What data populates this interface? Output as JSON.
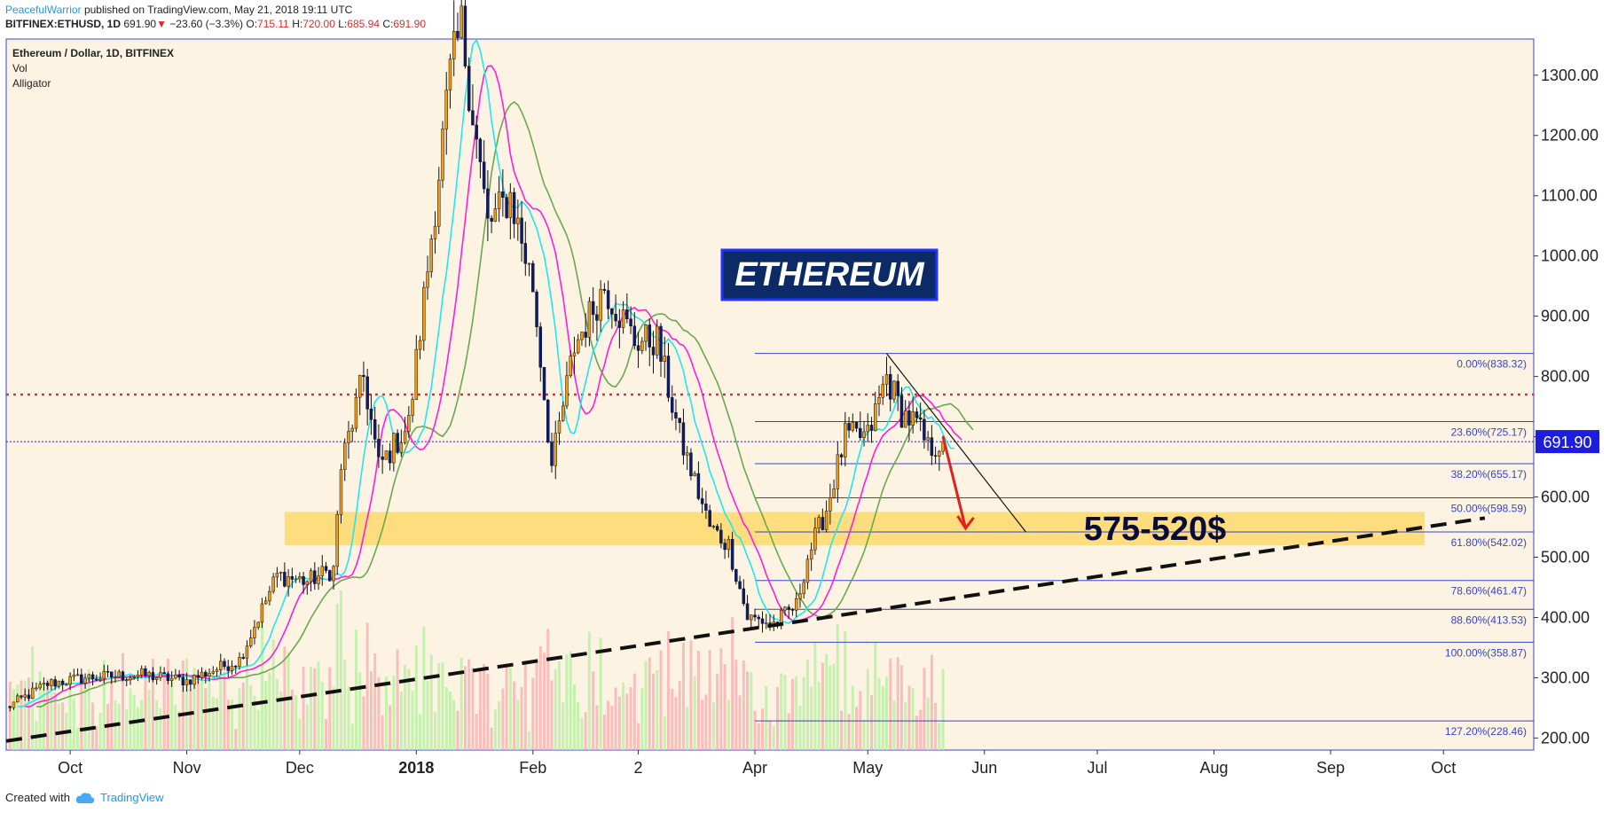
{
  "header": {
    "author": "PeacefulWarrior",
    "published": "published on TradingView.com, May 21, 2018 19:11 UTC",
    "symbol": "BITFINEX:ETHUSD, 1D",
    "last": "691.90",
    "change_arrow": "▼",
    "change": "−23.60 (−3.3%)",
    "o_label": "O:",
    "o": "715.11",
    "h_label": "H:",
    "h": "720.00",
    "l_label": "L:",
    "l": "685.94",
    "c_label": "C:",
    "c": "691.90"
  },
  "footer": {
    "created_with": "Created with",
    "brand": "TradingView",
    "brand_icon": "tradingview-cloud-icon"
  },
  "colors": {
    "background": "#fdf3e3",
    "up_candle": "#f39c12",
    "down_candle": "#0d1b6e",
    "jaw": "#6aa84f",
    "teeth": "#ff1ddf",
    "lips": "#21e6f0",
    "fib_line": "#3344cc",
    "resistance": "#e03030",
    "zone": "#fdd86b",
    "arrow": "#e02020",
    "price_badge": "#1d1de0"
  },
  "chart_data": {
    "type": "candlestick",
    "legend": [
      "Ethereum / Dollar, 1D, BITFINEX",
      "Vol",
      "Alligator"
    ],
    "ylim": [
      180,
      1360
    ],
    "y_ticks": [
      "1300.00",
      "1200.00",
      "1100.00",
      "1000.00",
      "900.00",
      "800.00",
      "700.00",
      "600.00",
      "500.00",
      "400.00",
      "300.00",
      "200.00"
    ],
    "y_tick_values": [
      1300,
      1200,
      1100,
      1000,
      900,
      800,
      700,
      600,
      500,
      400,
      300,
      200
    ],
    "x_ticks": [
      {
        "label": "Oct",
        "date": "2017-10-01",
        "bold": false
      },
      {
        "label": "Nov",
        "date": "2017-11-01",
        "bold": false
      },
      {
        "label": "Dec",
        "date": "2017-12-01",
        "bold": false
      },
      {
        "label": "2018",
        "date": "2018-01-01",
        "bold": true
      },
      {
        "label": "Feb",
        "date": "2018-02-01",
        "bold": false
      },
      {
        "label": "2",
        "date": "2018-03-01",
        "bold": false
      },
      {
        "label": "Apr",
        "date": "2018-04-01",
        "bold": false
      },
      {
        "label": "May",
        "date": "2018-05-01",
        "bold": false
      },
      {
        "label": "Jun",
        "date": "2018-06-01",
        "bold": false
      },
      {
        "label": "Jul",
        "date": "2018-07-01",
        "bold": false
      },
      {
        "label": "Aug",
        "date": "2018-08-01",
        "bold": false
      },
      {
        "label": "Sep",
        "date": "2018-09-01",
        "bold": false
      },
      {
        "label": "Oct",
        "date": "2018-10-01",
        "bold": false
      }
    ],
    "x_range": [
      "2017-09-14",
      "2018-10-25"
    ],
    "price_keypoints": [
      [
        "2017-09-14",
        250
      ],
      [
        "2017-09-25",
        290
      ],
      [
        "2017-10-05",
        300
      ],
      [
        "2017-10-20",
        305
      ],
      [
        "2017-11-01",
        295
      ],
      [
        "2017-11-15",
        330
      ],
      [
        "2017-11-25",
        470
      ],
      [
        "2017-12-03",
        460
      ],
      [
        "2017-12-10",
        480
      ],
      [
        "2017-12-12",
        650
      ],
      [
        "2017-12-18",
        800
      ],
      [
        "2017-12-22",
        650
      ],
      [
        "2017-12-30",
        720
      ],
      [
        "2018-01-04",
        980
      ],
      [
        "2018-01-10",
        1300
      ],
      [
        "2018-01-13",
        1380
      ],
      [
        "2018-01-20",
        1050
      ],
      [
        "2018-01-26",
        1100
      ],
      [
        "2018-02-01",
        950
      ],
      [
        "2018-02-06",
        650
      ],
      [
        "2018-02-12",
        850
      ],
      [
        "2018-02-20",
        950
      ],
      [
        "2018-02-28",
        860
      ],
      [
        "2018-03-06",
        860
      ],
      [
        "2018-03-12",
        700
      ],
      [
        "2018-03-20",
        550
      ],
      [
        "2018-03-25",
        520
      ],
      [
        "2018-03-30",
        400
      ],
      [
        "2018-04-06",
        390
      ],
      [
        "2018-04-12",
        420
      ],
      [
        "2018-04-15",
        500
      ],
      [
        "2018-04-20",
        580
      ],
      [
        "2018-04-25",
        700
      ],
      [
        "2018-05-01",
        700
      ],
      [
        "2018-05-06",
        800
      ],
      [
        "2018-05-10",
        740
      ],
      [
        "2018-05-14",
        720
      ],
      [
        "2018-05-17",
        680
      ],
      [
        "2018-05-21",
        692
      ]
    ],
    "alligator_offsets": {
      "jaw": 8,
      "teeth": 5,
      "lips": 3
    },
    "fibonacci": {
      "start_date": "2018-04-01",
      "levels": [
        {
          "label": "0.00%(838.32)",
          "value": 838.32
        },
        {
          "label": "23.60%(725.17)",
          "value": 725.17
        },
        {
          "label": "38.20%(655.17)",
          "value": 655.17
        },
        {
          "label": "50.00%(598.59)",
          "value": 598.59
        },
        {
          "label": "61.80%(542.02)",
          "value": 542.02
        },
        {
          "label": "78.60%(461.47)",
          "value": 461.47
        },
        {
          "label": "88.60%(413.53)",
          "value": 413.53
        },
        {
          "label": "100.00%(358.87)",
          "value": 358.87
        },
        {
          "label": "127.20%(228.46)",
          "value": 228.46
        }
      ]
    },
    "resistance_level": 770,
    "current_price": 691.9,
    "current_price_label": "691.90",
    "zone": {
      "from": "2017-11-27",
      "to": "2018-09-26",
      "low": 520,
      "high": 575
    },
    "zone_label": "575-520$",
    "title_box": "ETHEREUM",
    "trendline": {
      "from_date": "2017-09-14",
      "from_value": 195,
      "to_date": "2018-10-12",
      "to_value": 565
    },
    "downtrend_line": {
      "from_date": "2018-05-06",
      "from_value": 838,
      "to_date": "2018-06-12",
      "to_value": 542
    },
    "arrow": {
      "from_date": "2018-05-21",
      "from_value": 700,
      "to_date": "2018-05-27",
      "to_value": 548
    }
  }
}
